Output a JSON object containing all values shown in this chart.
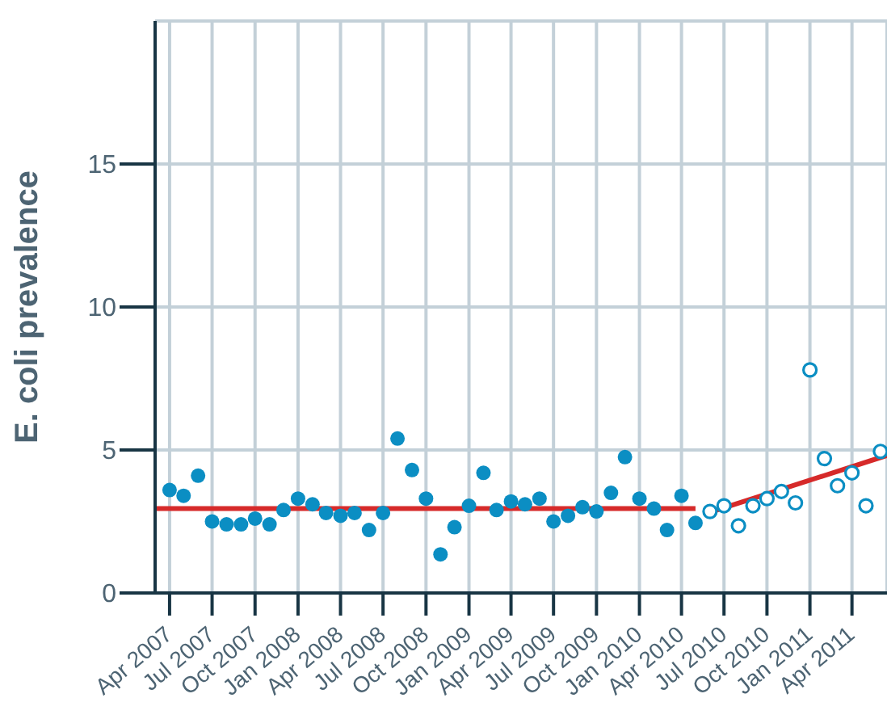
{
  "chart_data": {
    "type": "scatter",
    "ylabel": "E. coli prevalence",
    "xlim": [
      "2007-03-01",
      "2011-06-15"
    ],
    "ylim": [
      0,
      20
    ],
    "yticks": [
      0,
      5,
      10,
      15
    ],
    "xticks": [
      {
        "value": "2007-04",
        "label": "Apr 2007"
      },
      {
        "value": "2007-07",
        "label": "Jul 2007"
      },
      {
        "value": "2007-10",
        "label": "Oct 2007"
      },
      {
        "value": "2008-01",
        "label": "Jan 2008"
      },
      {
        "value": "2008-04",
        "label": "Apr 2008"
      },
      {
        "value": "2008-07",
        "label": "Jul 2008"
      },
      {
        "value": "2008-10",
        "label": "Oct 2008"
      },
      {
        "value": "2009-01",
        "label": "Jan 2009"
      },
      {
        "value": "2009-04",
        "label": "Apr 2009"
      },
      {
        "value": "2009-07",
        "label": "Jul 2009"
      },
      {
        "value": "2009-10",
        "label": "Oct 2009"
      },
      {
        "value": "2010-01",
        "label": "Jan 2010"
      },
      {
        "value": "2010-04",
        "label": "Apr 2010"
      },
      {
        "value": "2010-07",
        "label": "Jul 2010"
      },
      {
        "value": "2010-10",
        "label": "Oct 2010"
      },
      {
        "value": "2011-01",
        "label": "Jan 2011"
      },
      {
        "value": "2011-04",
        "label": "Apr 2011"
      }
    ],
    "grid": true,
    "marker": "circle",
    "series": [
      {
        "color": "#0b8ec3",
        "x": [
          "2007-04",
          "2007-05",
          "2007-06",
          "2007-07",
          "2007-08",
          "2007-09",
          "2007-10",
          "2007-11",
          "2007-12",
          "2008-01",
          "2008-02",
          "2008-03",
          "2008-04",
          "2008-05",
          "2008-06",
          "2008-07",
          "2008-08",
          "2008-09",
          "2008-10",
          "2008-11",
          "2008-12",
          "2009-01",
          "2009-02",
          "2009-03",
          "2009-04",
          "2009-05",
          "2009-06",
          "2009-07",
          "2009-08",
          "2009-09",
          "2009-10",
          "2009-11",
          "2009-12",
          "2010-01",
          "2010-02",
          "2010-03",
          "2010-04",
          "2010-05"
        ],
        "values": [
          3.6,
          3.4,
          4.1,
          2.5,
          2.4,
          2.4,
          2.6,
          2.4,
          2.9,
          3.3,
          3.1,
          2.8,
          2.7,
          2.8,
          2.2,
          2.8,
          5.4,
          4.3,
          3.3,
          1.35,
          2.3,
          3.05,
          4.2,
          2.9,
          3.2,
          3.1,
          3.3,
          2.5,
          2.7,
          3.0,
          2.85,
          3.5,
          4.75,
          3.3,
          2.95,
          2.2,
          3.4,
          2.45
        ]
      },
      {
        "color": "#0b8ec3",
        "x": [
          "2010-06",
          "2010-07",
          "2010-08",
          "2010-09",
          "2010-10",
          "2010-11",
          "2010-12",
          "2011-01",
          "2011-02",
          "2011-03",
          "2011-04",
          "2011-05",
          "2011-06"
        ],
        "values": [
          2.85,
          3.05,
          2.35,
          3.05,
          3.3,
          3.55,
          3.15,
          7.8,
          4.7,
          3.75,
          4.2,
          3.05,
          4.95
        ]
      },
      {
        "type": "line",
        "marker": "none",
        "color": "#d62a2a",
        "x": [
          "2007-03-01",
          "2010-05-01"
        ],
        "values": [
          2.95,
          2.95
        ]
      },
      {
        "type": "line",
        "marker": "none",
        "color": "#d62a2a",
        "x": [
          "2010-06-01",
          "2011-06-15"
        ],
        "values": [
          2.82,
          4.81
        ]
      }
    ]
  }
}
